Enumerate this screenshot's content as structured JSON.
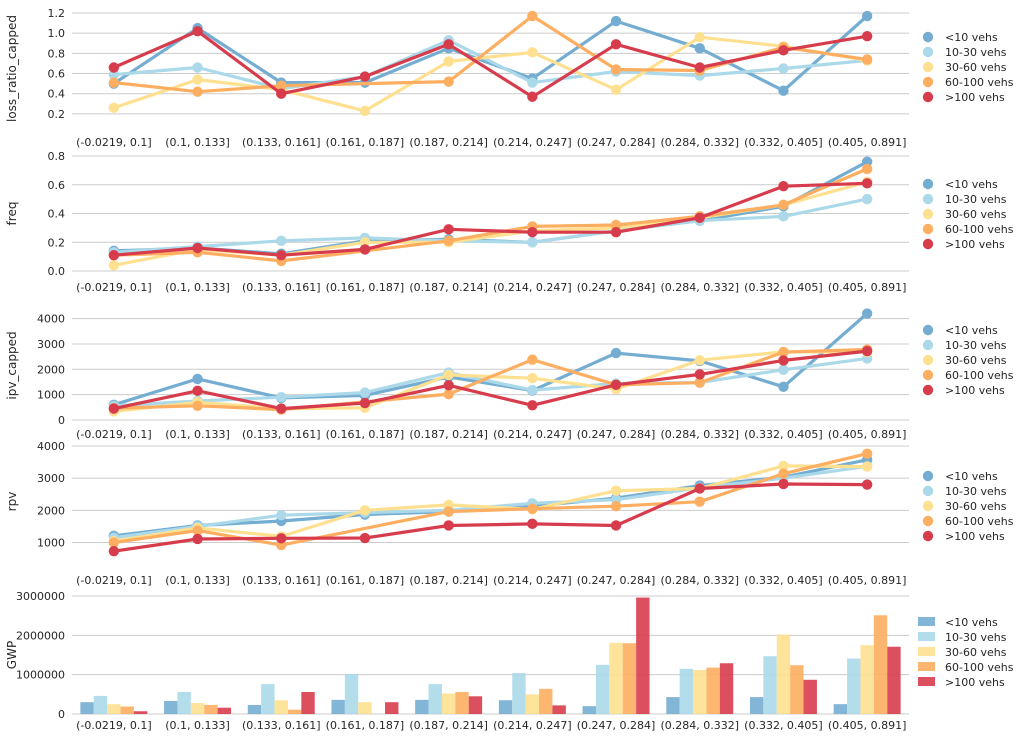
{
  "categories": [
    "(-0.0219, 0.1]",
    "(0.1, 0.133]",
    "(0.133, 0.161]",
    "(0.161, 0.187]",
    "(0.187, 0.214]",
    "(0.214, 0.247]",
    "(0.247, 0.284]",
    "(0.284, 0.332]",
    "(0.332, 0.405]",
    "(0.405, 0.891]"
  ],
  "legend": [
    "<10 vehs",
    "10-30 vehs",
    "30-60 vehs",
    "60-100 vehs",
    ">100 vehs"
  ],
  "colors": [
    "#74add1",
    "#abd9e9",
    "#fee090",
    "#fdae61",
    "#d73c4c"
  ],
  "chart_data": [
    {
      "type": "line",
      "ylabel": "loss_ratio_capped",
      "ylim": [
        0.1,
        1.2
      ],
      "yticks": [
        "0.2",
        "0.4",
        "0.6",
        "0.8",
        "1.0",
        "1.2"
      ],
      "grid": true,
      "legend_position": "right",
      "series": [
        {
          "name": "<10 vehs",
          "values": [
            0.5,
            1.05,
            0.51,
            0.51,
            0.85,
            0.55,
            1.12,
            0.85,
            0.43,
            1.17
          ]
        },
        {
          "name": "10-30 vehs",
          "values": [
            0.59,
            0.66,
            0.45,
            0.57,
            0.93,
            0.51,
            0.62,
            0.58,
            0.65,
            0.73
          ]
        },
        {
          "name": "30-60 vehs",
          "values": [
            0.26,
            0.54,
            0.44,
            0.23,
            0.72,
            0.81,
            0.44,
            0.96,
            0.87,
            0.73
          ]
        },
        {
          "name": "60-100 vehs",
          "values": [
            0.51,
            0.42,
            0.48,
            null,
            0.52,
            1.17,
            0.64,
            0.63,
            0.86,
            0.74
          ]
        },
        {
          "name": ">100 vehs",
          "values": [
            0.66,
            1.02,
            0.4,
            0.57,
            0.89,
            0.37,
            0.89,
            0.66,
            0.83,
            0.97
          ]
        }
      ]
    },
    {
      "type": "line",
      "ylabel": "freq",
      "ylim": [
        0.0,
        0.8
      ],
      "yticks": [
        "0.0",
        "0.2",
        "0.4",
        "0.6",
        "0.8"
      ],
      "grid": true,
      "legend_position": "right",
      "series": [
        {
          "name": "<10 vehs",
          "values": [
            0.14,
            0.16,
            0.12,
            0.21,
            0.22,
            0.2,
            0.28,
            0.35,
            0.45,
            0.76
          ]
        },
        {
          "name": "10-30 vehs",
          "values": [
            0.13,
            0.17,
            0.21,
            0.23,
            0.21,
            0.2,
            0.28,
            0.35,
            0.38,
            0.5
          ]
        },
        {
          "name": "30-60 vehs",
          "values": [
            0.04,
            0.15,
            0.11,
            0.2,
            0.2,
            0.28,
            0.3,
            0.37,
            0.46,
            0.62
          ]
        },
        {
          "name": "60-100 vehs",
          "values": [
            0.11,
            0.13,
            0.07,
            null,
            0.21,
            0.31,
            0.32,
            0.38,
            0.46,
            0.71
          ]
        },
        {
          "name": ">100 vehs",
          "values": [
            0.11,
            0.16,
            0.11,
            0.15,
            0.29,
            0.27,
            0.27,
            0.37,
            0.59,
            0.61
          ]
        }
      ]
    },
    {
      "type": "line",
      "ylabel": "ipv_capped",
      "ylim": [
        0,
        4300
      ],
      "yticks": [
        "0",
        "1000",
        "2000",
        "3000",
        "4000"
      ],
      "grid": true,
      "legend_position": "right",
      "series": [
        {
          "name": "<10 vehs",
          "values": [
            600,
            1620,
            870,
            970,
            1700,
            1160,
            2640,
            2330,
            1310,
            4200
          ]
        },
        {
          "name": "10-30 vehs",
          "values": [
            560,
            750,
            900,
            1080,
            1870,
            1180,
            1440,
            1480,
            1980,
            2430
          ]
        },
        {
          "name": "30-60 vehs",
          "values": [
            340,
            700,
            450,
            480,
            1780,
            1650,
            1220,
            2360,
            2690,
            2680
          ]
        },
        {
          "name": "60-100 vehs",
          "values": [
            470,
            560,
            410,
            null,
            1020,
            2380,
            1390,
            1470,
            2680,
            2780
          ]
        },
        {
          "name": ">100 vehs",
          "values": [
            450,
            1150,
            450,
            670,
            1370,
            580,
            1390,
            1800,
            2350,
            2720
          ]
        }
      ]
    },
    {
      "type": "line",
      "ylabel": "rpv",
      "ylim": [
        550,
        4000
      ],
      "yticks": [
        "1000",
        "2000",
        "3000",
        "4000"
      ],
      "grid": true,
      "legend_position": "right",
      "series": [
        {
          "name": "<10 vehs",
          "values": [
            1210,
            1530,
            1670,
            1870,
            1960,
            2130,
            2380,
            2770,
            3030,
            3570
          ]
        },
        {
          "name": "10-30 vehs",
          "values": [
            1150,
            1500,
            1850,
            1930,
            2000,
            2220,
            2330,
            2700,
            3000,
            3370
          ]
        },
        {
          "name": "30-60 vehs",
          "values": [
            1040,
            1450,
            1190,
            2000,
            2170,
            2030,
            2610,
            2680,
            3380,
            3360
          ]
        },
        {
          "name": "60-100 vehs",
          "values": [
            1000,
            1370,
            920,
            null,
            1960,
            2050,
            2130,
            2270,
            3140,
            3760
          ]
        },
        {
          "name": ">100 vehs",
          "values": [
            730,
            1110,
            1130,
            1140,
            1530,
            1580,
            1530,
            2680,
            2820,
            2800
          ]
        }
      ]
    },
    {
      "type": "bar",
      "ylabel": "GWP",
      "ylim": [
        0,
        3000000
      ],
      "yticks": [
        "0",
        "1000000",
        "2000000",
        "3000000"
      ],
      "grid": true,
      "legend_position": "right",
      "series": [
        {
          "name": "<10 vehs",
          "values": [
            300000,
            330000,
            230000,
            360000,
            360000,
            350000,
            200000,
            430000,
            430000,
            250000
          ]
        },
        {
          "name": "10-30 vehs",
          "values": [
            460000,
            560000,
            760000,
            1020000,
            760000,
            1040000,
            1250000,
            1150000,
            1470000,
            1410000
          ]
        },
        {
          "name": "30-60 vehs",
          "values": [
            250000,
            280000,
            350000,
            300000,
            520000,
            500000,
            1810000,
            1120000,
            2020000,
            1750000
          ]
        },
        {
          "name": "60-100 vehs",
          "values": [
            190000,
            230000,
            110000,
            0,
            560000,
            640000,
            1800000,
            1180000,
            1240000,
            2510000
          ]
        },
        {
          "name": ">100 vehs",
          "values": [
            70000,
            160000,
            560000,
            300000,
            450000,
            220000,
            2960000,
            1290000,
            870000,
            1710000
          ]
        }
      ]
    }
  ]
}
